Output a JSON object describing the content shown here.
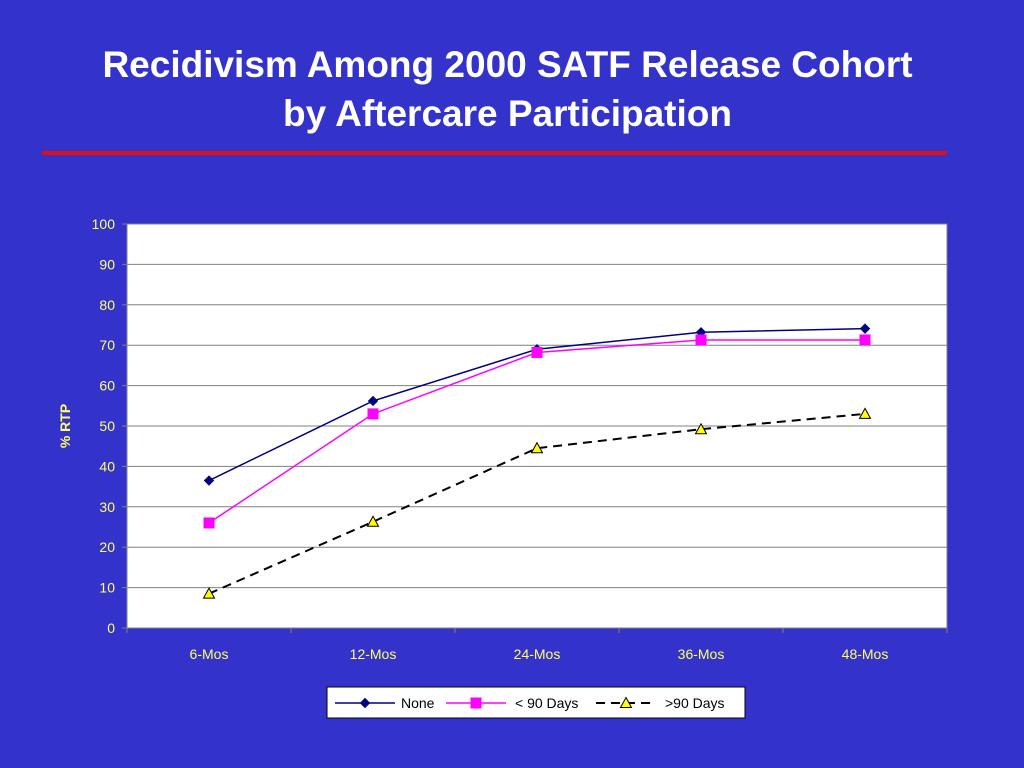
{
  "slide": {
    "title_line1": "Recidivism Among 2000 SATF Release Cohort",
    "title_line2": "by Aftercare Participation",
    "background_color": "#3333cc",
    "rule_color": "#e01010"
  },
  "chart_data": {
    "type": "line",
    "title": "",
    "xlabel": "",
    "ylabel": "% RTP",
    "ylim": [
      0,
      100
    ],
    "yticks": [
      0,
      10,
      20,
      30,
      40,
      50,
      60,
      70,
      80,
      90,
      100
    ],
    "grid": "horizontal",
    "legend_position": "bottom",
    "categories": [
      "6-Mos",
      "12-Mos",
      "24-Mos",
      "36-Mos",
      "48-Mos"
    ],
    "series": [
      {
        "name": "None",
        "values": [
          36.5,
          56.2,
          69.0,
          73.2,
          74.1
        ],
        "color": "#000080",
        "marker": "diamond",
        "dash": "solid"
      },
      {
        "name": "< 90 Days",
        "values": [
          26.0,
          53.0,
          68.2,
          71.3,
          71.3
        ],
        "color": "#ff00ff",
        "marker": "square",
        "dash": "solid"
      },
      {
        "name": ">90 Days",
        "values": [
          8.5,
          26.3,
          44.5,
          49.2,
          53.0
        ],
        "color": "#000000",
        "marker": "triangle",
        "marker_fill": "#ffff00",
        "dash": "dashed"
      }
    ]
  }
}
